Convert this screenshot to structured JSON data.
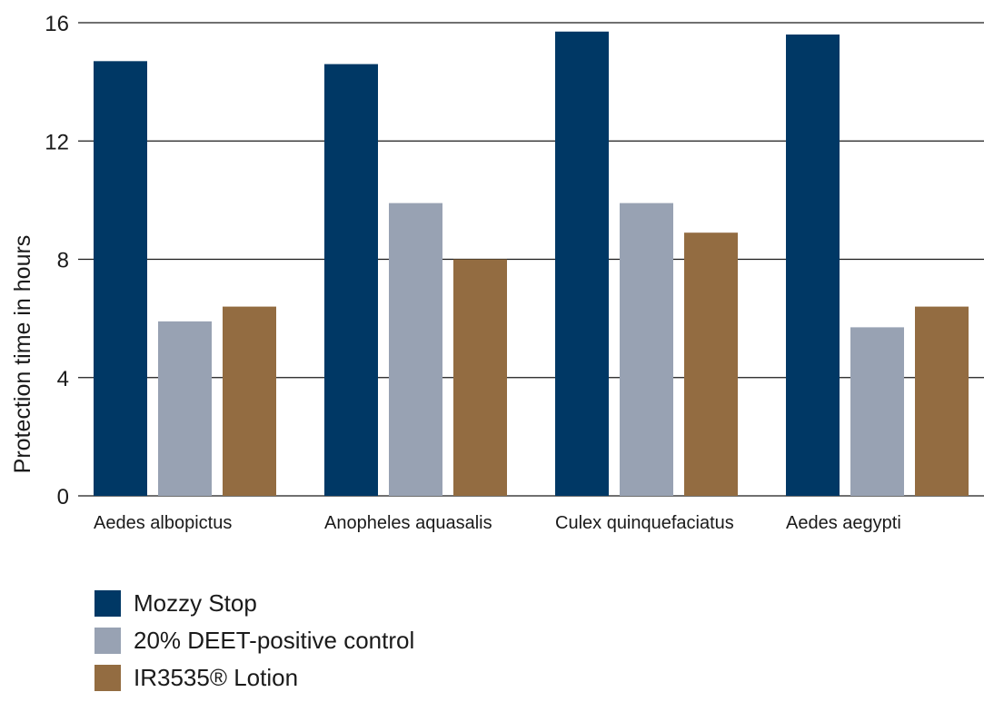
{
  "chart_data": {
    "type": "bar",
    "title": "",
    "xlabel": "",
    "ylabel": "Protection time in hours",
    "ylim": [
      0,
      16
    ],
    "yticks": [
      "0",
      "4",
      "8",
      "12",
      "16"
    ],
    "grid": true,
    "categories": [
      "Aedes albopictus",
      "Anopheles aquasalis",
      "Culex quinquefaciatus",
      "Aedes aegypti"
    ],
    "series": [
      {
        "name": "Mozzy Stop",
        "color": "#003865",
        "values": [
          14.7,
          14.6,
          15.7,
          15.6
        ]
      },
      {
        "name": "20% DEET-positive control",
        "color": "#98A2B3",
        "values": [
          5.9,
          9.9,
          9.9,
          5.7
        ]
      },
      {
        "name": "IR3535® Lotion",
        "color": "#936C41",
        "values": [
          6.4,
          8.0,
          8.9,
          6.4
        ]
      }
    ],
    "legend_position": "bottom-left"
  }
}
